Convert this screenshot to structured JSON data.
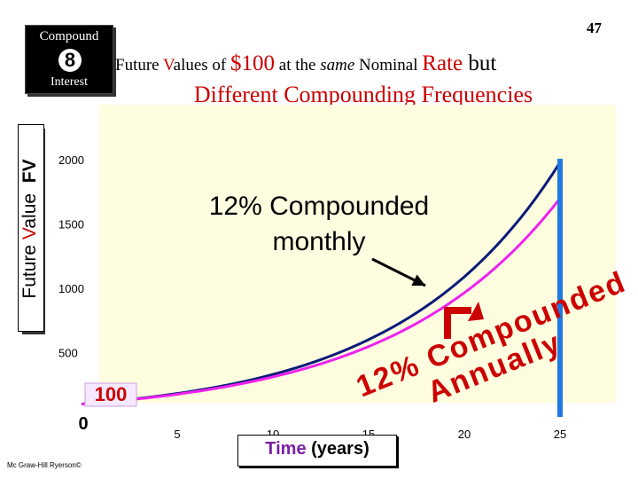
{
  "badge": {
    "title": "Compound",
    "number": "8",
    "subtitle": "Interest"
  },
  "page_number": "47",
  "title": {
    "line1_parts": [
      "Future ",
      "V",
      "alues of ",
      "$100",
      " at the ",
      "same",
      " Nominal ",
      "Rate",
      " but"
    ],
    "line2": "Different Compounding Frequencies"
  },
  "y_axis_label": {
    "red_word": "FV",
    "first": "Future ",
    "v": "V",
    "rest": "alue"
  },
  "x_axis_label": {
    "main": "Time",
    "unit": "(years)"
  },
  "footer": "Mc Graw-Hill Ryerson©",
  "annotations": {
    "monthly_line1": "12% Compounded",
    "monthly_line2": "monthly",
    "annual_line1": "12% Compounded",
    "annual_line2": "Annually",
    "start_value": "100"
  },
  "colors": {
    "navy": "#0a1a7a",
    "magenta": "#ee22ee",
    "plot_bg": "#fffde0",
    "vline": "#1f7ae0",
    "red": "#cc0000"
  },
  "chart_data": {
    "type": "line",
    "title": "Future Values of $100 at the same Nominal Rate but Different Compounding Frequencies",
    "xlabel": "Time (years)",
    "ylabel": "Future Value FV",
    "x": [
      0,
      5,
      10,
      15,
      20,
      25
    ],
    "x_ticks": [
      0,
      5,
      10,
      15,
      20,
      25
    ],
    "y_ticks": [
      0,
      500,
      1000,
      1500,
      2000
    ],
    "xlim": [
      0,
      25
    ],
    "ylim": [
      0,
      2000
    ],
    "series": [
      {
        "name": "12% Compounded monthly",
        "color": "#0a1a7a",
        "values": [
          100,
          182,
          330,
          601,
          1089,
          1979
        ]
      },
      {
        "name": "12% Compounded Annually",
        "color": "#ee22ee",
        "values": [
          100,
          176,
          311,
          547,
          965,
          1700
        ]
      }
    ],
    "vertical_marker_x": 25
  }
}
